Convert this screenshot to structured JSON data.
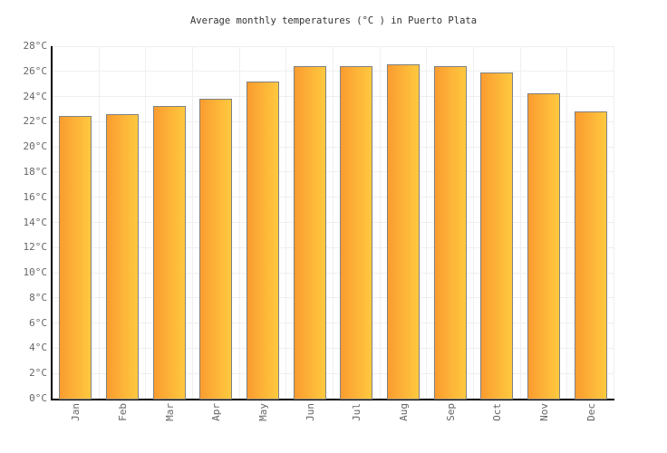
{
  "chart_data": {
    "type": "bar",
    "title": "Average monthly temperatures (°C ) in Puerto Plata",
    "categories": [
      "Jan",
      "Feb",
      "Mar",
      "Apr",
      "May",
      "Jun",
      "Jul",
      "Aug",
      "Sep",
      "Oct",
      "Nov",
      "Dec"
    ],
    "values": [
      22.5,
      22.7,
      23.3,
      23.9,
      25.3,
      26.5,
      26.5,
      26.6,
      26.5,
      26.0,
      24.3,
      22.9
    ],
    "unit": "°C",
    "xlabel": "",
    "ylabel": "",
    "ylim": [
      0,
      28
    ],
    "ytick_step": 2,
    "ytick_labels": [
      "0°C",
      "2°C",
      "4°C",
      "6°C",
      "8°C",
      "10°C",
      "12°C",
      "14°C",
      "16°C",
      "18°C",
      "20°C",
      "22°C",
      "24°C",
      "26°C",
      "28°C"
    ],
    "grid": "horizontal-and-vertical",
    "legend": "none",
    "colors": {
      "bar_gradient_left": "#FA9C30",
      "bar_gradient_right": "#FFC93F",
      "bar_border": "#818181",
      "gridline": "#EFEFEF",
      "axis_line": "#000000",
      "tick_label": "#666666",
      "title": "#333333",
      "background": "#FFFFFF"
    }
  }
}
